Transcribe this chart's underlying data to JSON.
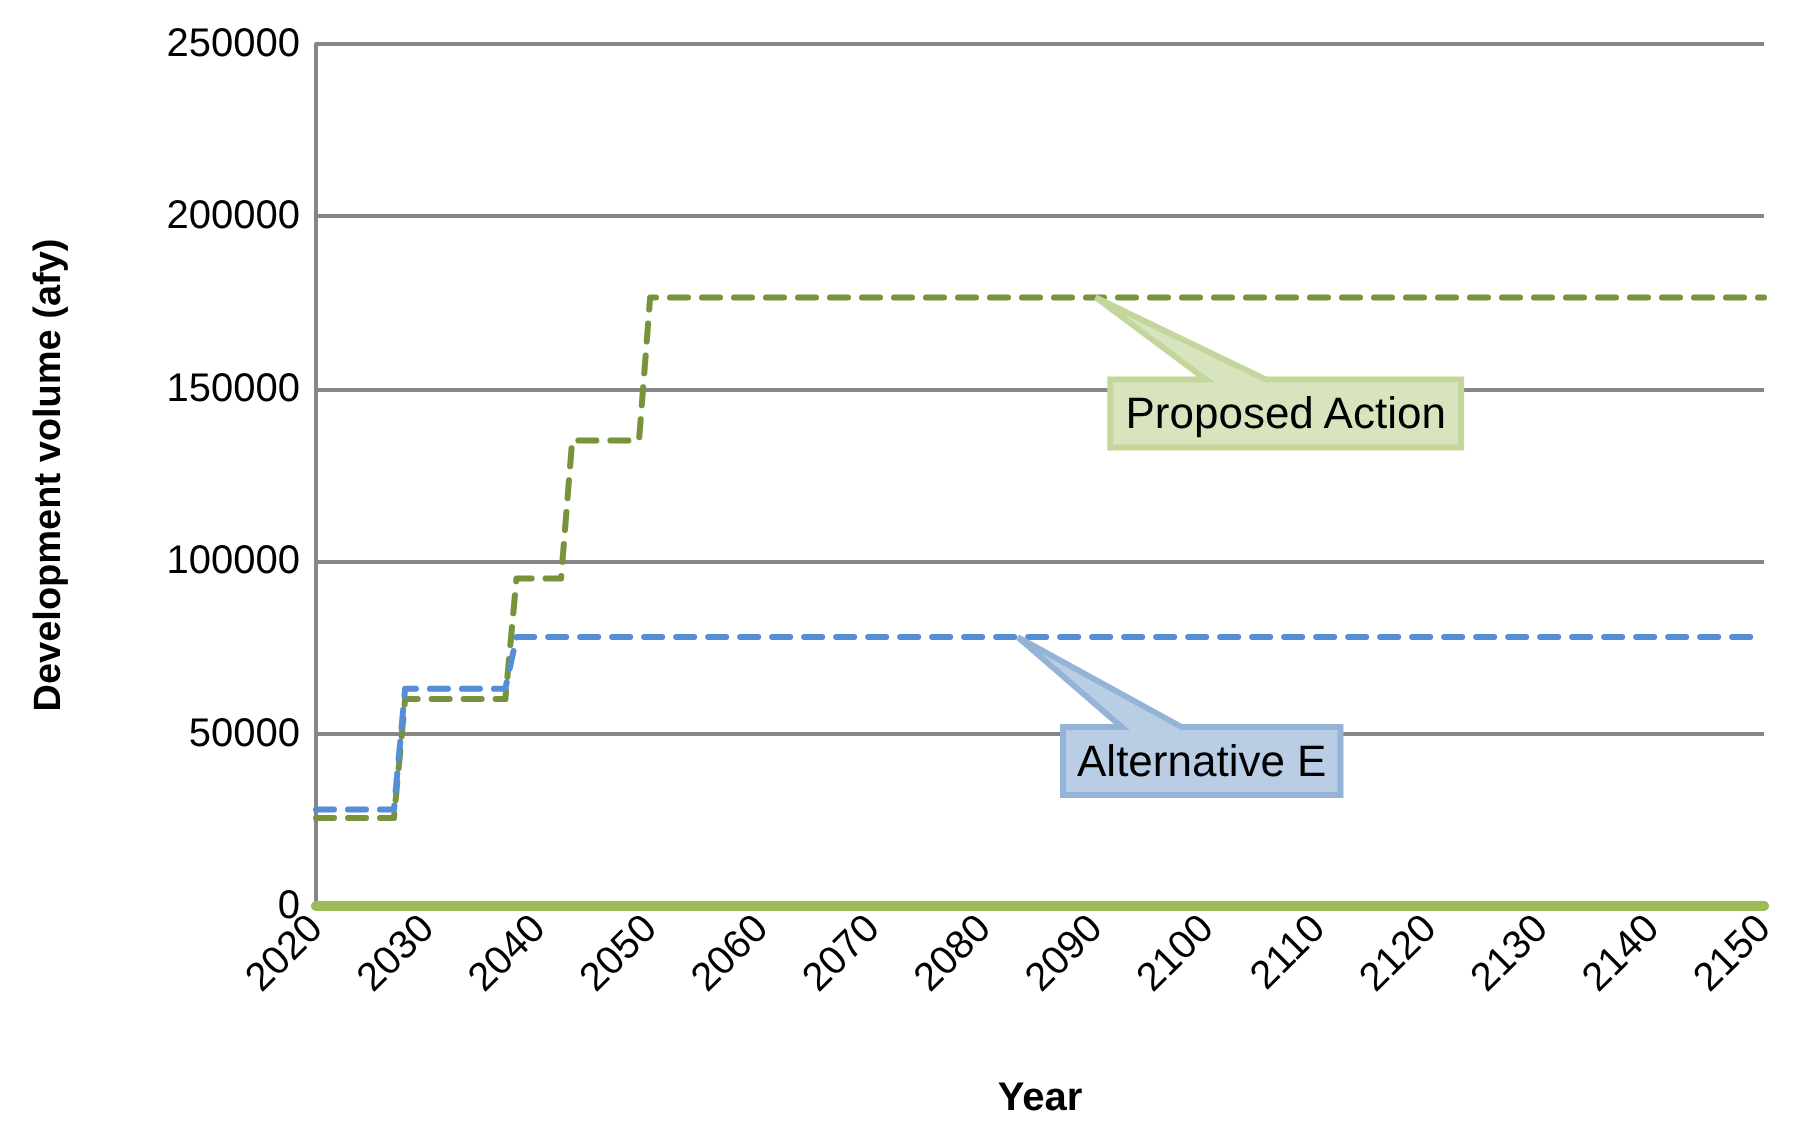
{
  "chart_data": {
    "type": "line",
    "xlabel": "Year",
    "ylabel": "Development volume (afy)",
    "xlim": [
      2020,
      2150
    ],
    "xticks": [
      2020,
      2030,
      2040,
      2050,
      2060,
      2070,
      2080,
      2090,
      2100,
      2110,
      2120,
      2130,
      2140,
      2150
    ],
    "ylim": [
      0,
      250000
    ],
    "yticks": [
      0,
      50000,
      100000,
      150000,
      200000,
      250000
    ],
    "grid": "y",
    "marker": "none",
    "series": [
      {
        "color": "#77933c",
        "line_style": "dashed",
        "x": [
          2020,
          2027,
          2028,
          2037,
          2038,
          2042,
          2043,
          2049,
          2050,
          2150
        ],
        "values": [
          25500,
          25500,
          60000,
          60000,
          95000,
          95000,
          135000,
          135000,
          176500,
          176500
        ]
      },
      {
        "color": "#558ed5",
        "line_style": "dashed",
        "x": [
          2020,
          2027,
          2028,
          2037,
          2038,
          2150
        ],
        "values": [
          28000,
          28000,
          63000,
          63000,
          78000,
          78000
        ]
      },
      {
        "color": "#9bbb59",
        "line_style": "solid",
        "x": [
          2020,
          2150
        ],
        "values": [
          0,
          0
        ]
      }
    ],
    "annotations": [
      {
        "text": "Proposed Action",
        "x": 2090,
        "y": 176500
      },
      {
        "text": "Alternative E",
        "x": 2083,
        "y": 78000
      }
    ]
  }
}
